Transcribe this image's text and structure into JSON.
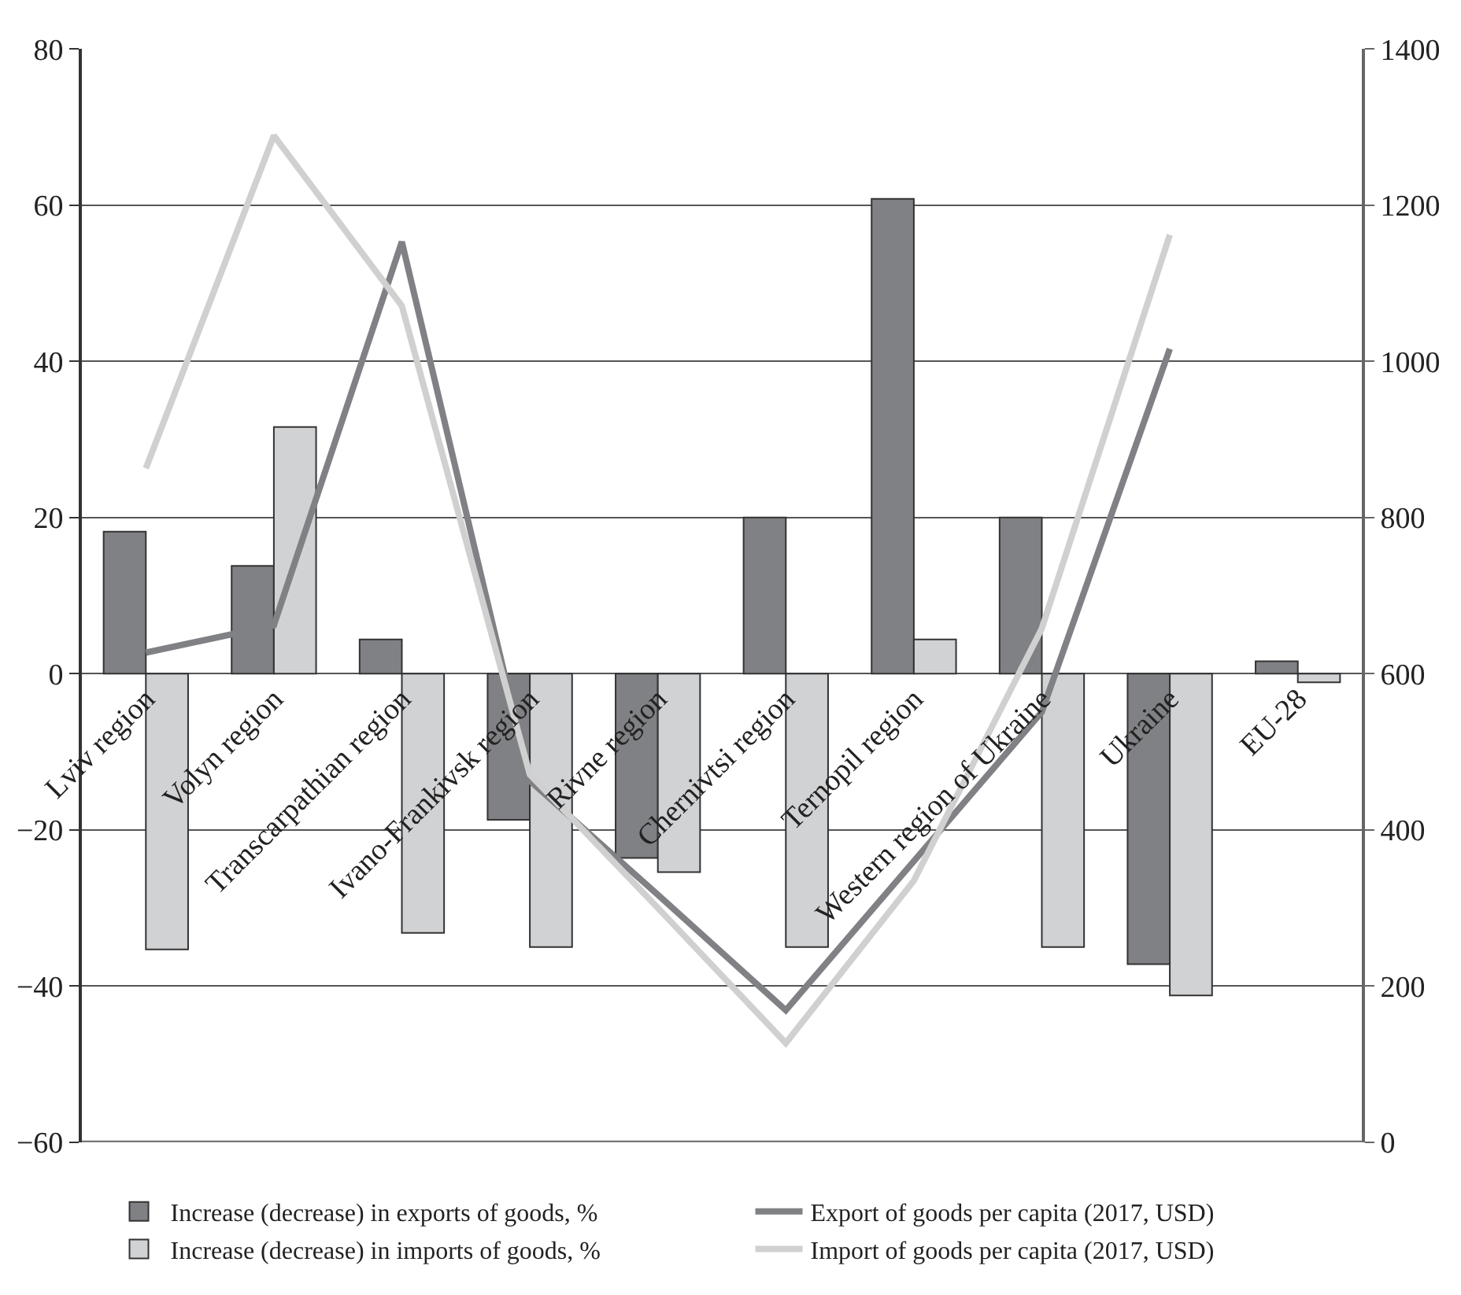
{
  "chart_data": {
    "type": "bar",
    "categories": [
      "Lviv region",
      "Volyn region",
      "Transcarpathian region",
      "Ivano-Frankivsk region",
      "Rivne region",
      "Chernivtsi region",
      "Ternopil region",
      "Western region of Ukraine",
      "Ukraine",
      "EU-28"
    ],
    "series": [
      {
        "name": "Increase (decrease) in exports of goods, %",
        "color": "#808185",
        "values": [
          18.2,
          13.8,
          4.4,
          -18.7,
          -23.6,
          20,
          60.8,
          20,
          -37.2,
          1.6
        ]
      },
      {
        "name": "Export of goods per capita (2017, USD)",
        "type": "line",
        "axis": "y2",
        "color": "#808185",
        "values": [
          627,
          662,
          1153,
          463,
          317,
          169,
          360,
          551,
          1016,
          null
        ]
      },
      {
        "name": "Increase (decrease) in imports of goods, %",
        "color": "#d1d2d4",
        "values": [
          -35.3,
          31.6,
          -33.2,
          -35.0,
          -25.4,
          -35.0,
          4.4,
          -35.0,
          -41.2,
          -1.1
        ]
      },
      {
        "name": "Import of goods per capita (2017, USD)",
        "type": "line",
        "axis": "y2",
        "color": "#d0d0d0",
        "values": [
          863,
          1289,
          1071,
          471,
          300,
          127,
          335,
          658,
          1162,
          null
        ]
      }
    ],
    "ylim": [
      -60,
      80
    ],
    "yticks": [
      -60,
      -40,
      -20,
      0,
      20,
      40,
      60,
      80
    ],
    "y2lim": [
      0,
      1400
    ],
    "y2ticks": [
      0,
      200,
      400,
      600,
      800,
      1000,
      1200,
      1400
    ],
    "grid": "y",
    "legend": "bottom",
    "marker": "none",
    "line_style": "solid"
  }
}
